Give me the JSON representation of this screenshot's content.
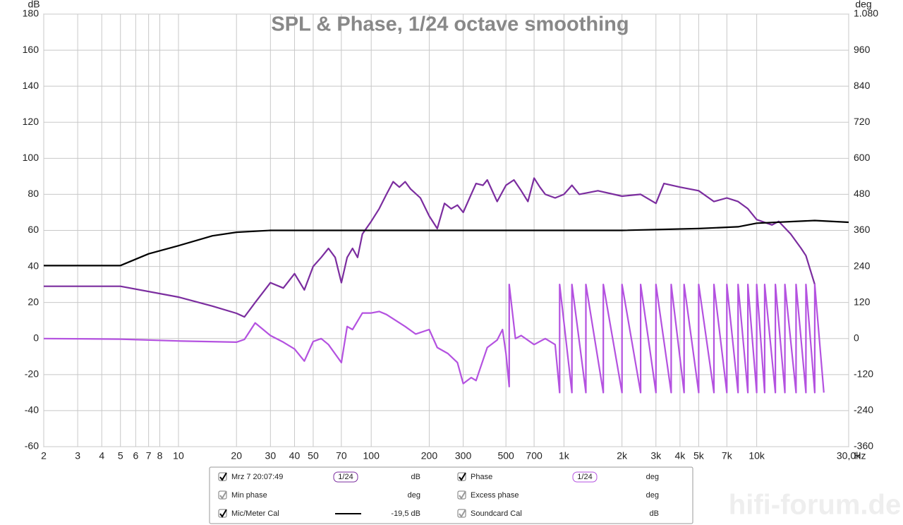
{
  "chart_data": {
    "type": "line",
    "title": "SPL & Phase, 1/24 octave smoothing",
    "y_label": "dB",
    "y2_label": "deg",
    "x_unit": "Hz",
    "log_x": true,
    "grid": true,
    "xlim": [
      2,
      30000
    ],
    "ylim": [
      -60,
      180
    ],
    "y2lim": [
      -360,
      1080
    ],
    "xticks": [
      2,
      3,
      4,
      5,
      6,
      7,
      8,
      10,
      20,
      30,
      40,
      50,
      70,
      100,
      200,
      300,
      500,
      700,
      {
        "value": 1000,
        "label": "1k"
      },
      {
        "value": 2000,
        "label": "2k"
      },
      {
        "value": 3000,
        "label": "3k"
      },
      {
        "value": 4000,
        "label": "4k"
      },
      {
        "value": 5000,
        "label": "5k"
      },
      {
        "value": 7000,
        "label": "7k"
      },
      {
        "value": 10000,
        "label": "10k"
      },
      {
        "value": 30000,
        "label": "30,0k"
      }
    ],
    "yticks": [
      -60,
      -40,
      -20,
      0,
      20,
      40,
      60,
      80,
      100,
      120,
      140,
      160,
      180
    ],
    "y2ticks": [
      -360,
      -240,
      -120,
      0,
      120,
      240,
      360,
      480,
      600,
      720,
      840,
      960,
      {
        "value": 1080,
        "label": "1.080"
      }
    ],
    "series": [
      {
        "name": "Mrz 7 20:07:49",
        "color": "#7b2d9f",
        "smoothing": "1/24",
        "unit": "dB",
        "x": [
          2,
          5,
          10,
          15,
          20,
          22,
          25,
          30,
          35,
          40,
          45,
          50,
          55,
          60,
          65,
          70,
          75,
          80,
          85,
          90,
          100,
          110,
          120,
          130,
          140,
          150,
          160,
          180,
          200,
          220,
          240,
          260,
          280,
          300,
          330,
          350,
          380,
          400,
          450,
          500,
          550,
          600,
          650,
          700,
          750,
          800,
          900,
          1000,
          1100,
          1200,
          1500,
          2000,
          2500,
          3000,
          3300,
          4000,
          5000,
          6000,
          7000,
          8000,
          9000,
          10000,
          12000,
          13000,
          15000,
          17000,
          18000,
          20000
        ],
        "values": [
          29,
          29,
          23,
          18,
          14,
          12,
          20,
          31,
          28,
          36,
          27,
          40,
          45,
          50,
          45,
          31,
          45,
          50,
          45,
          58,
          65,
          72,
          80,
          87,
          84,
          87,
          83,
          78,
          68,
          61,
          75,
          72,
          74,
          70,
          80,
          86,
          85,
          88,
          76,
          85,
          88,
          82,
          76,
          89,
          84,
          80,
          78,
          80,
          85,
          80,
          82,
          79,
          80,
          75,
          86,
          84,
          82,
          76,
          78,
          76,
          72,
          66,
          63,
          65,
          58,
          50,
          46,
          30
        ]
      },
      {
        "name": "Phase",
        "color": "#b452e0",
        "axis": "y2",
        "smoothing": "1/24",
        "unit": "deg",
        "x": [
          2,
          5,
          10,
          20,
          22,
          25,
          30,
          35,
          40,
          45,
          50,
          55,
          60,
          70,
          75,
          80,
          90,
          100,
          110,
          120,
          150,
          170,
          200,
          220,
          250,
          280,
          300,
          330,
          350,
          400,
          450,
          480,
          500,
          520,
          520,
          560,
          600,
          700,
          800,
          900,
          950,
          950,
          1100,
          1100,
          1300,
          1300,
          1600,
          1600,
          2000,
          2000,
          2500,
          2500,
          3000,
          3000,
          3600,
          3600,
          4200,
          4200,
          5000,
          5000,
          6000,
          6000,
          7000,
          7000,
          8000,
          8000,
          9000,
          9000,
          10000,
          10000,
          11000,
          11000,
          12500,
          12500,
          14000,
          14000,
          16000,
          16000,
          18000,
          18000,
          20000,
          20000,
          22300
        ],
        "values": [
          0,
          -2,
          -8,
          -12,
          -3,
          52,
          10,
          -12,
          -35,
          -75,
          -10,
          0,
          -20,
          -80,
          40,
          30,
          85,
          85,
          90,
          80,
          40,
          15,
          30,
          -30,
          -50,
          -80,
          -150,
          -130,
          -140,
          -30,
          -5,
          30,
          -50,
          -160,
          180,
          0,
          10,
          -20,
          0,
          -20,
          -180,
          180,
          -180,
          180,
          -180,
          180,
          -180,
          180,
          -180,
          180,
          -180,
          180,
          -180,
          180,
          -180,
          180,
          -180,
          180,
          -180,
          180,
          -180,
          180,
          -180,
          180,
          -180,
          180,
          -180,
          180,
          -180,
          180,
          -180,
          180,
          -180,
          180,
          -180,
          180,
          -180,
          180,
          -180,
          180,
          -180,
          180,
          -180
        ]
      },
      {
        "name": "Mic/Meter Cal",
        "color": "#000000",
        "offset_label": "-19,5 dB",
        "x": [
          2,
          5,
          7,
          10,
          15,
          20,
          30,
          100,
          1000,
          2000,
          5000,
          8000,
          10000,
          20000,
          30000
        ],
        "values": [
          40.5,
          40.5,
          47,
          51.5,
          57,
          59,
          60,
          60,
          60,
          60,
          61,
          62,
          64,
          65.5,
          64.5
        ]
      }
    ],
    "inactive_traces": [
      {
        "name": "Min phase",
        "unit": "deg"
      },
      {
        "name": "Excess phase",
        "unit": "deg"
      },
      {
        "name": "Soundcard Cal",
        "unit": "dB"
      }
    ],
    "watermark": "hifi-forum.de"
  }
}
